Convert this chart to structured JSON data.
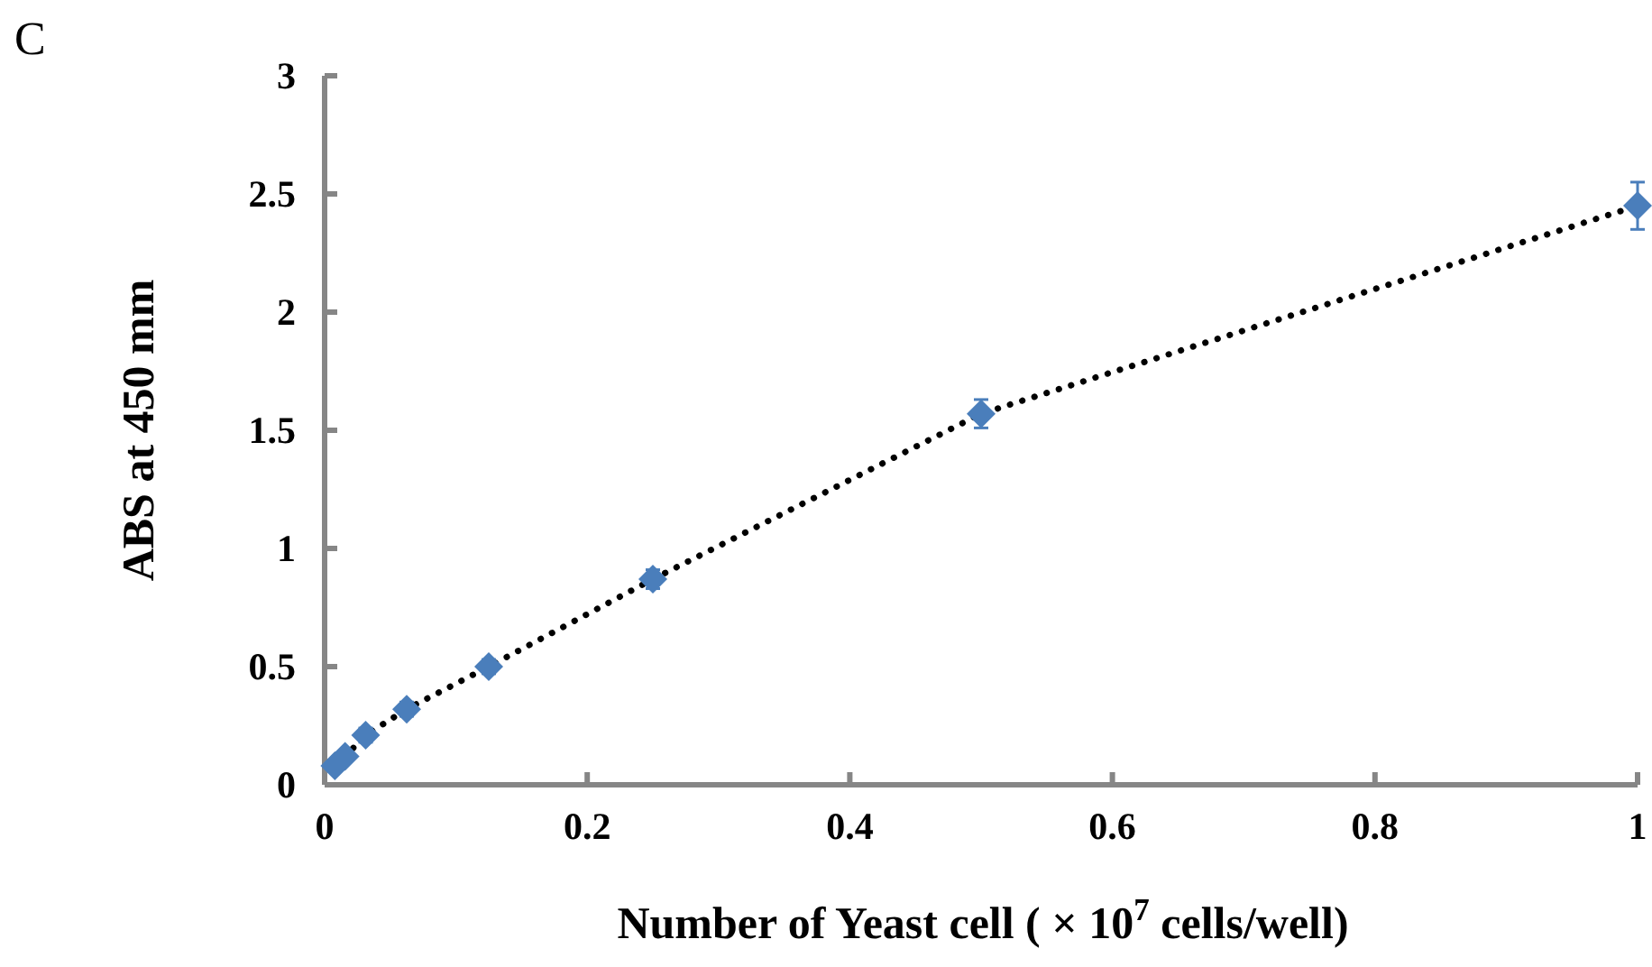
{
  "chart_data": {
    "type": "scatter",
    "title": "C",
    "xlabel": "Number of  Yeast cell ( × 10$^{7}$ cells/well)",
    "ylabel": "ABS at 450 mm",
    "xlim": [
      0,
      1
    ],
    "xticks": [
      0,
      0.2,
      0.4,
      0.6,
      0.8,
      1
    ],
    "ylim": [
      0,
      3
    ],
    "yticks": [
      0,
      0.5,
      1,
      1.5,
      2,
      2.5,
      3
    ],
    "grid": false,
    "series": [
      {
        "type": "line",
        "color": "#000000",
        "line_style": "dotted",
        "marker": "none",
        "x": [
          0.0078,
          0.0156,
          0.03125,
          0.0625,
          0.125,
          0.25,
          0.5,
          1
        ],
        "values": [
          0.08,
          0.12,
          0.21,
          0.32,
          0.5,
          0.87,
          1.57,
          2.45
        ]
      },
      {
        "color": "#4a7ebb",
        "marker": "diamond",
        "x": [
          0.0078,
          0.0156,
          0.03125,
          0.0625,
          0.125,
          0.25,
          0.5,
          1
        ],
        "values": [
          0.08,
          0.12,
          0.21,
          0.32,
          0.5,
          0.87,
          1.57,
          2.45
        ],
        "errors": [
          null,
          null,
          0.03,
          0.03,
          0.03,
          0.04,
          0.06,
          0.1
        ]
      }
    ]
  }
}
